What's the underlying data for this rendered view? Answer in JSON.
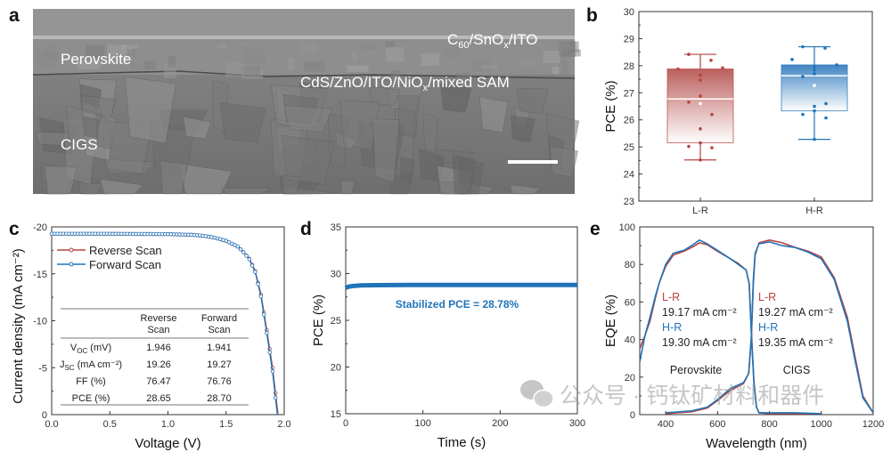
{
  "panel_labels": {
    "a": "a",
    "b": "b",
    "c": "c",
    "d": "d",
    "e": "e"
  },
  "panel_a": {
    "top_layer": {
      "p1": "C",
      "sub1": "60",
      "p2": "/SnO",
      "sub2": "x",
      "p3": "/ITO"
    },
    "perovskite_label": "Perovskite",
    "interface_layer": {
      "p1": "CdS/ZnO/ITO/NiO",
      "sub1": "x",
      "p2": "/mixed SAM"
    },
    "cigs_label": "CIGS"
  },
  "chart_data": [
    {
      "id": "b",
      "type": "box",
      "ylabel": "PCE (%)",
      "ylim": [
        23,
        30
      ],
      "yticks": [
        "23",
        "24",
        "25",
        "26",
        "27",
        "28",
        "29",
        "30"
      ],
      "categories": [
        "L-R",
        "H-R"
      ],
      "colors": [
        "#b84340",
        "#1f74b8"
      ],
      "boxes": [
        {
          "q1": 25.15,
          "median": 26.77,
          "q3": 27.88,
          "mean": 26.6,
          "whisker_low": 24.52,
          "whisker_high": 28.42,
          "points": [
            28.42,
            28.2,
            27.88,
            27.92,
            27.65,
            27.47,
            26.88,
            26.65,
            26.2,
            25.67,
            25.15,
            25.02,
            24.97,
            24.52
          ]
        },
        {
          "q1": 26.33,
          "median": 27.63,
          "q3": 28.03,
          "mean": 27.27,
          "whisker_low": 25.28,
          "whisker_high": 28.7,
          "points": [
            28.7,
            28.65,
            28.23,
            28.03,
            27.97,
            27.84,
            27.7,
            27.6,
            26.6,
            26.5,
            26.33,
            26.2,
            26.07,
            25.28
          ]
        }
      ]
    },
    {
      "id": "c",
      "type": "line",
      "xlabel": "Voltage (V)",
      "ylabel": "Current density (mA cm⁻²)",
      "xlim": [
        0,
        2
      ],
      "ylim": [
        0,
        -20
      ],
      "xticks": [
        "0.0",
        "0.5",
        "1.0",
        "1.5",
        "2.0"
      ],
      "yticks": [
        "0",
        "-5",
        "-10",
        "-15",
        "-20"
      ],
      "legend_position": "top-left",
      "series": [
        {
          "name": "Reverse Scan",
          "color": "#b84340",
          "x": [
            0,
            0.5,
            1.0,
            1.2,
            1.3,
            1.4,
            1.5,
            1.6,
            1.65,
            1.7,
            1.75,
            1.8,
            1.85,
            1.9,
            1.946
          ],
          "y": [
            -19.26,
            -19.26,
            -19.22,
            -19.15,
            -19.05,
            -18.85,
            -18.5,
            -17.9,
            -17.3,
            -16.6,
            -15.3,
            -12.8,
            -9.0,
            -5.0,
            0
          ]
        },
        {
          "name": "Forward Scan",
          "color": "#1f74b8",
          "x": [
            0,
            0.5,
            1.0,
            1.2,
            1.3,
            1.4,
            1.5,
            1.6,
            1.65,
            1.7,
            1.75,
            1.8,
            1.85,
            1.9,
            1.941
          ],
          "y": [
            -19.27,
            -19.27,
            -19.23,
            -19.16,
            -19.06,
            -18.86,
            -18.52,
            -17.92,
            -17.3,
            -16.55,
            -15.2,
            -12.6,
            -8.7,
            -4.6,
            0
          ]
        }
      ],
      "table": {
        "headers": [
          [
            "Reverse",
            "Scan"
          ],
          [
            "Forward",
            "Scan"
          ]
        ],
        "rows": [
          {
            "label": "V",
            "sub": "OC",
            "unit": " (mV)",
            "rev": "1.946",
            "fwd": "1.941"
          },
          {
            "label": "J",
            "sub": "SC",
            "unit": " (mA cm⁻²)",
            "rev": "19.26",
            "fwd": "19.27"
          },
          {
            "label": "FF (%)",
            "sub": "",
            "unit": "",
            "rev": "76.47",
            "fwd": "76.76"
          },
          {
            "label": "PCE (%)",
            "sub": "",
            "unit": "",
            "rev": "28.65",
            "fwd": "28.70"
          }
        ]
      }
    },
    {
      "id": "d",
      "type": "line",
      "xlabel": "Time (s)",
      "ylabel": "PCE (%)",
      "xlim": [
        0,
        300
      ],
      "ylim": [
        15,
        35
      ],
      "xticks": [
        "0",
        "100",
        "200",
        "300"
      ],
      "yticks": [
        "15",
        "20",
        "25",
        "30",
        "35"
      ],
      "series": [
        {
          "color": "#1f74b8",
          "x": [
            0,
            2,
            5,
            10,
            20,
            40,
            80,
            150,
            220,
            300
          ],
          "y": [
            28.45,
            28.55,
            28.62,
            28.68,
            28.73,
            28.76,
            28.78,
            28.79,
            28.78,
            28.78
          ]
        }
      ],
      "annotation": "Stabilized PCE = 28.78%"
    },
    {
      "id": "e",
      "type": "line",
      "xlabel": "Wavelength (nm)",
      "ylabel": "EQE (%)",
      "xlim": [
        300,
        1200
      ],
      "ylim": [
        0,
        100
      ],
      "xticks": [
        "400",
        "600",
        "800",
        "1000",
        "1200"
      ],
      "yticks": [
        "0",
        "20",
        "40",
        "60",
        "80",
        "100"
      ],
      "series": [
        {
          "color": "#b84340",
          "x": [
            300,
            320,
            340,
            360,
            375,
            400,
            430,
            470,
            500,
            530,
            560,
            600,
            650,
            680,
            710,
            722,
            730,
            740,
            750,
            760,
            800,
            900,
            1000
          ],
          "y": [
            35,
            42,
            50,
            62,
            70,
            79,
            85,
            87,
            89,
            91.5,
            90.5,
            87,
            83,
            80.5,
            77,
            70,
            45,
            18,
            4,
            1,
            0.5,
            0.5,
            0.5
          ]
        },
        {
          "color": "#1f74b8",
          "x": [
            300,
            320,
            340,
            360,
            375,
            400,
            430,
            470,
            500,
            530,
            560,
            600,
            650,
            680,
            710,
            722,
            730,
            740,
            750,
            760,
            800,
            900,
            1000
          ],
          "y": [
            28,
            42,
            52,
            63,
            70,
            80,
            86,
            87.5,
            90,
            93,
            91,
            87.5,
            83,
            80,
            77,
            70,
            44,
            17,
            4,
            1,
            1,
            1,
            0.5
          ]
        },
        {
          "color": "#b84340",
          "x": [
            400,
            500,
            560,
            600,
            650,
            700,
            720,
            730,
            738,
            745,
            760,
            800,
            850,
            900,
            950,
            1000,
            1050,
            1100,
            1130,
            1160,
            1200
          ],
          "y": [
            0.5,
            1.5,
            3.5,
            7.5,
            13,
            16.5,
            22,
            40,
            70,
            85,
            91.5,
            93,
            91.5,
            89,
            87,
            84,
            73,
            52,
            31,
            10,
            1
          ]
        },
        {
          "color": "#1f74b8",
          "x": [
            400,
            500,
            560,
            600,
            650,
            700,
            720,
            730,
            738,
            745,
            760,
            800,
            850,
            900,
            950,
            1000,
            1050,
            1100,
            1130,
            1160,
            1200
          ],
          "y": [
            1,
            2,
            4,
            8,
            14,
            17,
            22,
            41,
            72,
            86,
            91,
            92,
            90,
            89,
            86.5,
            83,
            72,
            50,
            29,
            9,
            1
          ]
        }
      ],
      "annotations": {
        "perovskite": {
          "lr": "L-R",
          "lr_val": "19.17 mA cm⁻²",
          "hr": "H-R",
          "hr_val": "19.30 mA cm⁻²",
          "name": "Perovskite"
        },
        "cigs": {
          "lr": "L-R",
          "lr_val": "19.27 mA cm⁻²",
          "hr": "H-R",
          "hr_val": "19.35 mA cm⁻²",
          "name": "CIGS"
        }
      }
    }
  ],
  "watermark": {
    "text": "公众号 · 钙钛矿材料和器件",
    "icon": "wechat-icon"
  }
}
